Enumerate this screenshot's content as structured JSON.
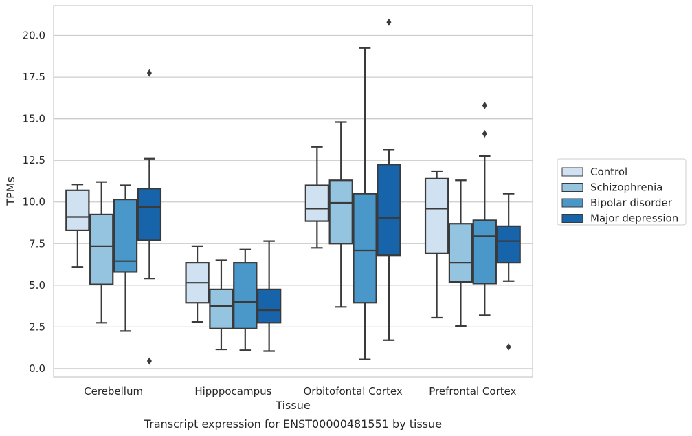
{
  "caption": "Transcript expression for ENST00000481551 by tissue",
  "colors": {
    "Control": "#d0e1f2",
    "Schizophrenia": "#94c4df",
    "Bipolar disorder": "#4a98c9",
    "Major depression": "#1764ab",
    "line": "#3a3a3a",
    "grid": "#cccccc"
  },
  "chart_data": {
    "type": "box",
    "xlabel": "Tissue",
    "ylabel": "TPMs",
    "ylim": [
      -0.5,
      21.8
    ],
    "yticks": [
      "0.0",
      "2.5",
      "5.0",
      "7.5",
      "10.0",
      "12.5",
      "15.0",
      "17.5",
      "20.0"
    ],
    "grid": "horizontal",
    "legend_position": "right",
    "categories": [
      "Cerebellum",
      "Hipppocampus",
      "Orbitofontal Cortex",
      "Prefrontal Cortex"
    ],
    "series": [
      {
        "name": "Control",
        "boxes": [
          {
            "whislo": 6.1,
            "q1": 8.3,
            "med": 9.1,
            "q3": 10.7,
            "whishi": 11.05,
            "fliers": []
          },
          {
            "whislo": 2.8,
            "q1": 3.95,
            "med": 5.15,
            "q3": 6.35,
            "whishi": 7.35,
            "fliers": []
          },
          {
            "whislo": 7.25,
            "q1": 8.85,
            "med": 9.6,
            "q3": 11.0,
            "whishi": 13.3,
            "fliers": []
          },
          {
            "whislo": 3.05,
            "q1": 6.9,
            "med": 9.6,
            "q3": 11.4,
            "whishi": 11.85,
            "fliers": []
          }
        ]
      },
      {
        "name": "Schizophrenia",
        "boxes": [
          {
            "whislo": 2.75,
            "q1": 5.05,
            "med": 7.35,
            "q3": 9.25,
            "whishi": 11.2,
            "fliers": []
          },
          {
            "whislo": 1.15,
            "q1": 2.4,
            "med": 3.75,
            "q3": 4.75,
            "whishi": 6.5,
            "fliers": []
          },
          {
            "whislo": 3.7,
            "q1": 7.5,
            "med": 9.95,
            "q3": 11.3,
            "whishi": 14.8,
            "fliers": []
          },
          {
            "whislo": 2.55,
            "q1": 5.2,
            "med": 6.35,
            "q3": 8.7,
            "whishi": 11.3,
            "fliers": []
          }
        ]
      },
      {
        "name": "Bipolar disorder",
        "boxes": [
          {
            "whislo": 2.25,
            "q1": 5.8,
            "med": 6.45,
            "q3": 10.15,
            "whishi": 11.0,
            "fliers": []
          },
          {
            "whislo": 1.1,
            "q1": 2.4,
            "med": 4.0,
            "q3": 6.35,
            "whishi": 7.15,
            "fliers": []
          },
          {
            "whislo": 0.55,
            "q1": 3.95,
            "med": 7.1,
            "q3": 10.5,
            "whishi": 19.25,
            "fliers": []
          },
          {
            "whislo": 3.2,
            "q1": 5.1,
            "med": 7.95,
            "q3": 8.9,
            "whishi": 12.75,
            "fliers": [
              14.1,
              15.8
            ]
          }
        ]
      },
      {
        "name": "Major depression",
        "boxes": [
          {
            "whislo": 5.4,
            "q1": 7.7,
            "med": 9.7,
            "q3": 10.8,
            "whishi": 12.6,
            "fliers": [
              17.75,
              0.45
            ]
          },
          {
            "whislo": 1.05,
            "q1": 2.75,
            "med": 3.5,
            "q3": 4.75,
            "whishi": 7.65,
            "fliers": []
          },
          {
            "whislo": 1.7,
            "q1": 6.8,
            "med": 9.05,
            "q3": 12.25,
            "whishi": 13.15,
            "fliers": [
              20.8
            ]
          },
          {
            "whislo": 5.25,
            "q1": 6.35,
            "med": 7.65,
            "q3": 8.55,
            "whishi": 10.5,
            "fliers": [
              1.3
            ]
          }
        ]
      }
    ]
  }
}
